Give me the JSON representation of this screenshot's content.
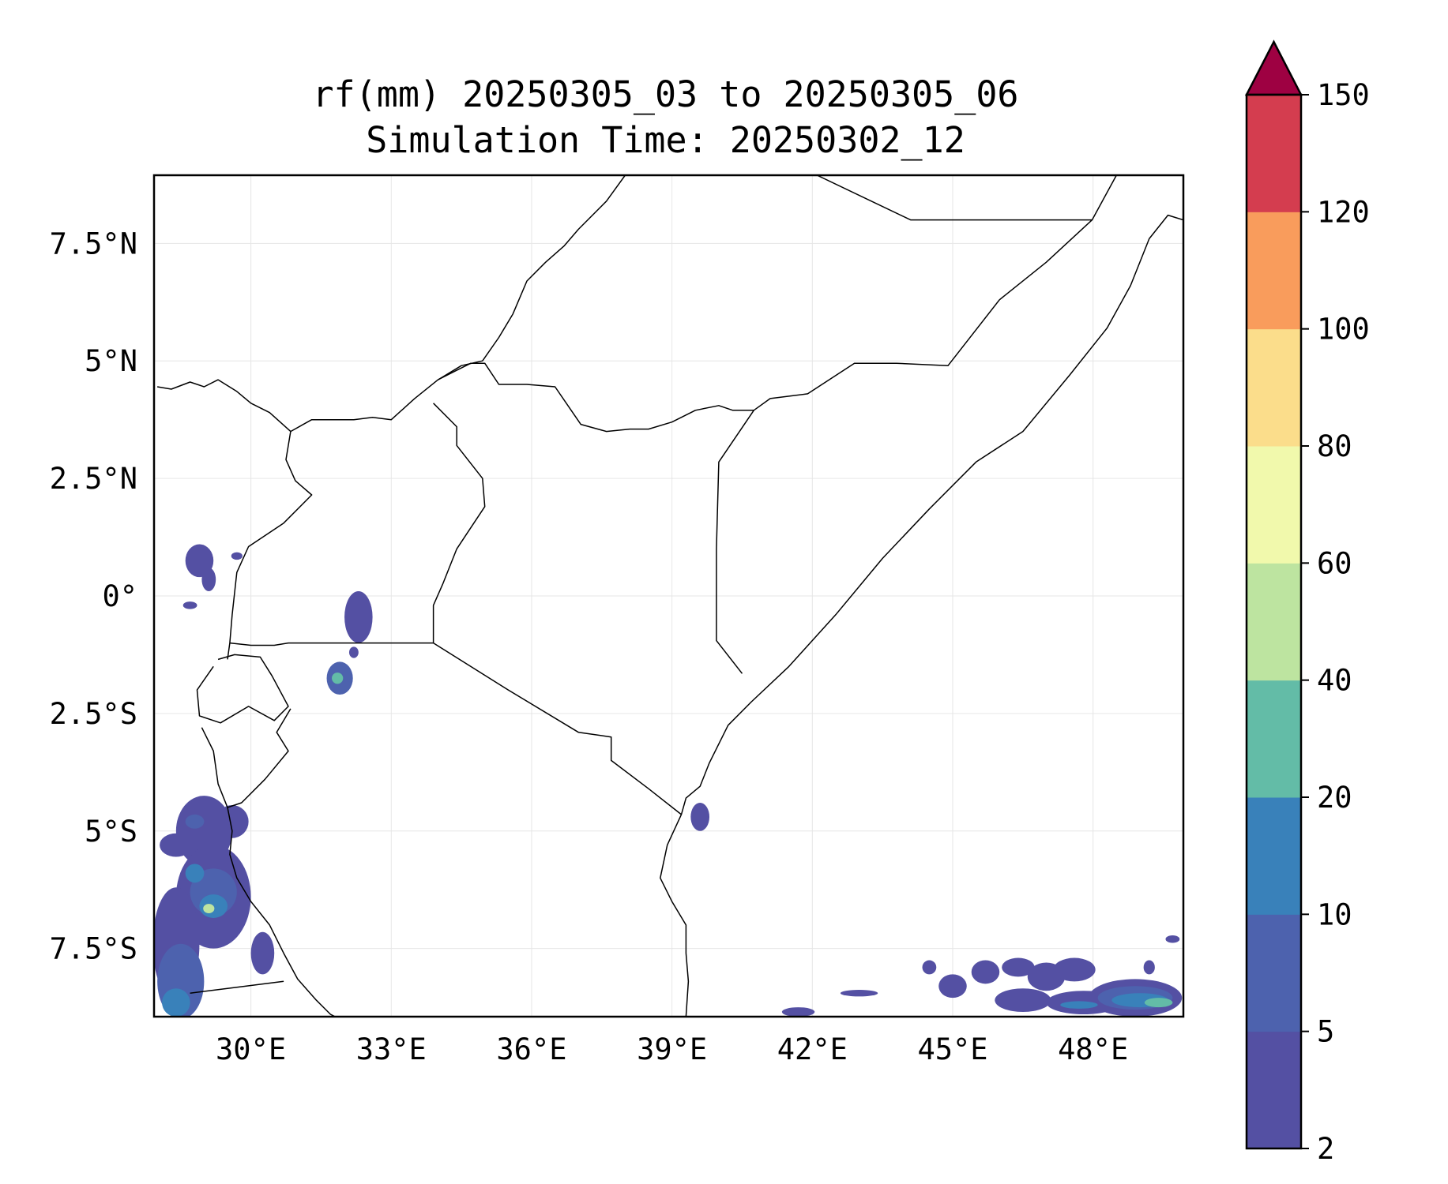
{
  "title": {
    "line1": "rf(mm) 20250305_03 to 20250305_06",
    "line2": "Simulation Time: 20250302_12"
  },
  "map": {
    "lon_range": [
      27.93,
      49.93
    ],
    "lat_range": [
      -8.95,
      8.95
    ],
    "lon_ticks": [
      {
        "value": 30,
        "label": "30°E"
      },
      {
        "value": 33,
        "label": "33°E"
      },
      {
        "value": 36,
        "label": "36°E"
      },
      {
        "value": 39,
        "label": "39°E"
      },
      {
        "value": 42,
        "label": "42°E"
      },
      {
        "value": 45,
        "label": "45°E"
      },
      {
        "value": 48,
        "label": "48°E"
      }
    ],
    "lat_ticks": [
      {
        "value": 7.5,
        "label": "7.5°N"
      },
      {
        "value": 5,
        "label": "5°N"
      },
      {
        "value": 2.5,
        "label": "2.5°N"
      },
      {
        "value": 0,
        "label": "0°"
      },
      {
        "value": -2.5,
        "label": "2.5°S"
      },
      {
        "value": -5,
        "label": "5°S"
      },
      {
        "value": -7.5,
        "label": "7.5°S"
      }
    ],
    "gridlines": true,
    "colors": {
      "border": "#000000",
      "grid": "#e6e6e6"
    },
    "borders": [
      [
        [
          28.0,
          4.45
        ],
        [
          28.3,
          4.4
        ],
        [
          28.7,
          4.55
        ],
        [
          29.0,
          4.45
        ],
        [
          29.3,
          4.6
        ],
        [
          29.7,
          4.35
        ],
        [
          30.0,
          4.1
        ],
        [
          30.4,
          3.9
        ],
        [
          30.85,
          3.5
        ]
      ],
      [
        [
          30.85,
          3.5
        ],
        [
          31.3,
          3.75
        ],
        [
          31.8,
          3.75
        ],
        [
          32.2,
          3.75
        ],
        [
          32.6,
          3.8
        ],
        [
          33.0,
          3.75
        ],
        [
          33.5,
          4.2
        ],
        [
          34.0,
          4.6
        ],
        [
          34.4,
          4.8
        ],
        [
          34.7,
          4.95
        ],
        [
          35.0,
          4.95
        ],
        [
          35.3,
          4.5
        ],
        [
          35.9,
          4.5
        ],
        [
          36.5,
          4.45
        ],
        [
          37.05,
          3.65
        ],
        [
          37.6,
          3.5
        ],
        [
          38.1,
          3.55
        ],
        [
          38.5,
          3.55
        ],
        [
          39.0,
          3.7
        ],
        [
          39.5,
          3.95
        ],
        [
          40.0,
          4.05
        ],
        [
          40.3,
          3.95
        ],
        [
          40.75,
          3.95
        ]
      ],
      [
        [
          34.0,
          4.6
        ],
        [
          34.5,
          4.9
        ],
        [
          34.95,
          5.0
        ],
        [
          35.3,
          5.5
        ],
        [
          35.6,
          6.0
        ],
        [
          35.9,
          6.7
        ],
        [
          36.3,
          7.1
        ],
        [
          36.7,
          7.45
        ],
        [
          37.0,
          7.8
        ],
        [
          37.6,
          8.4
        ],
        [
          38.0,
          8.95
        ]
      ],
      [
        [
          40.75,
          3.95
        ],
        [
          41.1,
          4.2
        ],
        [
          41.9,
          4.3
        ],
        [
          42.9,
          4.95
        ],
        [
          43.8,
          4.95
        ],
        [
          44.9,
          4.9
        ],
        [
          46.0,
          6.3
        ],
        [
          47.0,
          7.1
        ],
        [
          47.98,
          8.0
        ],
        [
          48.5,
          8.95
        ]
      ],
      [
        [
          40.75,
          3.95
        ],
        [
          40.0,
          2.85
        ],
        [
          39.95,
          1.0
        ],
        [
          39.95,
          -0.95
        ],
        [
          40.5,
          -1.65
        ]
      ],
      [
        [
          42.1,
          8.95
        ],
        [
          44.1,
          8.0
        ],
        [
          47.98,
          8.0
        ]
      ],
      [
        [
          33.9,
          4.1
        ],
        [
          34.4,
          3.6
        ],
        [
          34.4,
          3.2
        ],
        [
          34.95,
          2.5
        ],
        [
          35.0,
          1.9
        ],
        [
          34.6,
          1.3
        ],
        [
          34.4,
          1.0
        ],
        [
          34.1,
          0.25
        ],
        [
          33.9,
          -0.2
        ],
        [
          33.9,
          -1.0
        ]
      ],
      [
        [
          30.85,
          3.5
        ],
        [
          30.75,
          2.9
        ],
        [
          30.95,
          2.45
        ],
        [
          31.3,
          2.15
        ],
        [
          30.7,
          1.55
        ],
        [
          29.95,
          1.05
        ],
        [
          29.7,
          0.5
        ],
        [
          29.6,
          -0.4
        ],
        [
          29.55,
          -1.0
        ],
        [
          29.5,
          -1.35
        ]
      ],
      [
        [
          29.55,
          -1.0
        ],
        [
          30.0,
          -1.05
        ],
        [
          30.5,
          -1.05
        ],
        [
          30.8,
          -1.0
        ],
        [
          31.5,
          -1.0
        ],
        [
          32.5,
          -1.0
        ],
        [
          33.9,
          -1.0
        ],
        [
          35.5,
          -2.0
        ],
        [
          37.0,
          -2.9
        ],
        [
          37.7,
          -3.0
        ],
        [
          37.7,
          -3.5
        ],
        [
          38.5,
          -4.1
        ],
        [
          39.2,
          -4.65
        ]
      ],
      [
        [
          29.3,
          -1.35
        ],
        [
          29.65,
          -1.25
        ],
        [
          30.2,
          -1.3
        ],
        [
          30.45,
          -1.7
        ],
        [
          30.8,
          -2.35
        ],
        [
          30.5,
          -2.65
        ],
        [
          29.95,
          -2.35
        ],
        [
          29.35,
          -2.7
        ],
        [
          28.9,
          -2.55
        ],
        [
          28.85,
          -2.0
        ],
        [
          29.2,
          -1.5
        ]
      ],
      [
        [
          28.95,
          -2.8
        ],
        [
          29.2,
          -3.3
        ],
        [
          29.3,
          -4.0
        ],
        [
          29.5,
          -4.5
        ],
        [
          29.6,
          -5.0
        ],
        [
          29.55,
          -5.5
        ],
        [
          29.7,
          -6.0
        ],
        [
          30.0,
          -6.5
        ],
        [
          30.4,
          -7.0
        ],
        [
          30.7,
          -7.6
        ],
        [
          31.0,
          -8.15
        ],
        [
          31.4,
          -8.6
        ],
        [
          31.7,
          -8.9
        ],
        [
          31.8,
          -8.95
        ]
      ],
      [
        [
          30.85,
          -2.4
        ],
        [
          30.55,
          -2.9
        ],
        [
          30.8,
          -3.3
        ],
        [
          30.3,
          -3.9
        ],
        [
          29.8,
          -4.4
        ],
        [
          29.5,
          -4.5
        ]
      ],
      [
        [
          28.7,
          -8.45
        ],
        [
          29.5,
          -8.35
        ],
        [
          30.7,
          -8.2
        ]
      ],
      [
        [
          39.2,
          -4.65
        ],
        [
          39.3,
          -4.3
        ],
        [
          39.6,
          -4.05
        ],
        [
          39.8,
          -3.55
        ],
        [
          40.2,
          -2.75
        ],
        [
          40.7,
          -2.25
        ],
        [
          41.5,
          -1.5
        ],
        [
          42.5,
          -0.4
        ],
        [
          43.5,
          0.8
        ],
        [
          44.5,
          1.85
        ],
        [
          45.5,
          2.85
        ],
        [
          46.5,
          3.5
        ],
        [
          47.5,
          4.7
        ],
        [
          48.3,
          5.7
        ],
        [
          48.8,
          6.6
        ],
        [
          49.2,
          7.6
        ],
        [
          49.6,
          8.1
        ],
        [
          49.93,
          8.0
        ]
      ],
      [
        [
          39.2,
          -4.65
        ],
        [
          38.9,
          -5.3
        ],
        [
          38.75,
          -6.0
        ],
        [
          39.0,
          -6.5
        ],
        [
          39.3,
          -7.0
        ],
        [
          39.3,
          -7.6
        ],
        [
          39.35,
          -8.2
        ],
        [
          39.3,
          -8.95
        ]
      ]
    ]
  },
  "rain_patches": [
    {
      "lon": 28.9,
      "lat": 0.75,
      "rx": 0.3,
      "ry": 0.35,
      "level": 0
    },
    {
      "lon": 29.1,
      "lat": 0.35,
      "rx": 0.15,
      "ry": 0.25,
      "level": 0
    },
    {
      "lon": 28.7,
      "lat": -0.2,
      "rx": 0.15,
      "ry": 0.08,
      "level": 0
    },
    {
      "lon": 29.7,
      "lat": 0.85,
      "rx": 0.12,
      "ry": 0.08,
      "level": 0
    },
    {
      "lon": 32.3,
      "lat": -0.45,
      "rx": 0.3,
      "ry": 0.55,
      "level": 0
    },
    {
      "lon": 31.9,
      "lat": -1.75,
      "rx": 0.28,
      "ry": 0.35,
      "level": 1
    },
    {
      "lon": 31.85,
      "lat": -1.75,
      "rx": 0.12,
      "ry": 0.12,
      "level": 3
    },
    {
      "lon": 32.2,
      "lat": -1.2,
      "rx": 0.1,
      "ry": 0.12,
      "level": 0
    },
    {
      "lon": 29.0,
      "lat": -5.0,
      "rx": 0.6,
      "ry": 0.75,
      "level": 0
    },
    {
      "lon": 29.2,
      "lat": -6.4,
      "rx": 0.8,
      "ry": 1.1,
      "level": 0
    },
    {
      "lon": 28.4,
      "lat": -7.4,
      "rx": 0.5,
      "ry": 1.2,
      "level": 0
    },
    {
      "lon": 28.5,
      "lat": -8.2,
      "rx": 0.5,
      "ry": 0.8,
      "level": 1
    },
    {
      "lon": 29.2,
      "lat": -6.3,
      "rx": 0.5,
      "ry": 0.5,
      "level": 1
    },
    {
      "lon": 29.2,
      "lat": -6.6,
      "rx": 0.3,
      "ry": 0.25,
      "level": 2
    },
    {
      "lon": 29.1,
      "lat": -6.65,
      "rx": 0.12,
      "ry": 0.1,
      "level": 4
    },
    {
      "lon": 28.8,
      "lat": -5.9,
      "rx": 0.2,
      "ry": 0.2,
      "level": 2
    },
    {
      "lon": 28.8,
      "lat": -4.8,
      "rx": 0.2,
      "ry": 0.15,
      "level": 1
    },
    {
      "lon": 28.4,
      "lat": -8.65,
      "rx": 0.3,
      "ry": 0.3,
      "level": 2
    },
    {
      "lon": 29.6,
      "lat": -4.8,
      "rx": 0.35,
      "ry": 0.35,
      "level": 0
    },
    {
      "lon": 30.25,
      "lat": -7.6,
      "rx": 0.25,
      "ry": 0.45,
      "level": 0
    },
    {
      "lon": 28.4,
      "lat": -5.3,
      "rx": 0.35,
      "ry": 0.25,
      "level": 0
    },
    {
      "lon": 39.6,
      "lat": -4.7,
      "rx": 0.2,
      "ry": 0.3,
      "level": 0
    },
    {
      "lon": 41.7,
      "lat": -8.85,
      "rx": 0.35,
      "ry": 0.1,
      "level": 0
    },
    {
      "lon": 43.0,
      "lat": -8.45,
      "rx": 0.4,
      "ry": 0.07,
      "level": 0
    },
    {
      "lon": 44.5,
      "lat": -7.9,
      "rx": 0.15,
      "ry": 0.15,
      "level": 0
    },
    {
      "lon": 45.0,
      "lat": -8.3,
      "rx": 0.3,
      "ry": 0.25,
      "level": 0
    },
    {
      "lon": 45.7,
      "lat": -8.0,
      "rx": 0.3,
      "ry": 0.25,
      "level": 0
    },
    {
      "lon": 46.4,
      "lat": -7.9,
      "rx": 0.35,
      "ry": 0.2,
      "level": 0
    },
    {
      "lon": 47.0,
      "lat": -8.1,
      "rx": 0.4,
      "ry": 0.3,
      "level": 0
    },
    {
      "lon": 47.6,
      "lat": -7.95,
      "rx": 0.45,
      "ry": 0.25,
      "level": 0
    },
    {
      "lon": 46.5,
      "lat": -8.6,
      "rx": 0.6,
      "ry": 0.25,
      "level": 0
    },
    {
      "lon": 47.8,
      "lat": -8.65,
      "rx": 0.8,
      "ry": 0.25,
      "level": 0
    },
    {
      "lon": 48.9,
      "lat": -8.55,
      "rx": 1.0,
      "ry": 0.4,
      "level": 0
    },
    {
      "lon": 48.9,
      "lat": -8.55,
      "rx": 0.8,
      "ry": 0.25,
      "level": 1
    },
    {
      "lon": 49.0,
      "lat": -8.6,
      "rx": 0.6,
      "ry": 0.15,
      "level": 2
    },
    {
      "lon": 49.4,
      "lat": -8.65,
      "rx": 0.3,
      "ry": 0.1,
      "level": 3
    },
    {
      "lon": 47.7,
      "lat": -8.7,
      "rx": 0.4,
      "ry": 0.08,
      "level": 2
    },
    {
      "lon": 49.7,
      "lat": -7.3,
      "rx": 0.15,
      "ry": 0.08,
      "level": 0
    },
    {
      "lon": 49.2,
      "lat": -7.9,
      "rx": 0.12,
      "ry": 0.15,
      "level": 0
    }
  ],
  "colorbar": {
    "levels": [
      2,
      5,
      10,
      20,
      40,
      60,
      80,
      100,
      120,
      150
    ],
    "tick_labels": [
      "2",
      "5",
      "10",
      "20",
      "40",
      "60",
      "80",
      "100",
      "120",
      "150"
    ],
    "colors": [
      "#5450a3",
      "#4d62ae",
      "#3981ba",
      "#63bca7",
      "#bde4a0",
      "#f1f9ac",
      "#fbdd8b",
      "#f99c5c",
      "#d43d4f",
      "#9e0142"
    ],
    "extend": "max"
  }
}
